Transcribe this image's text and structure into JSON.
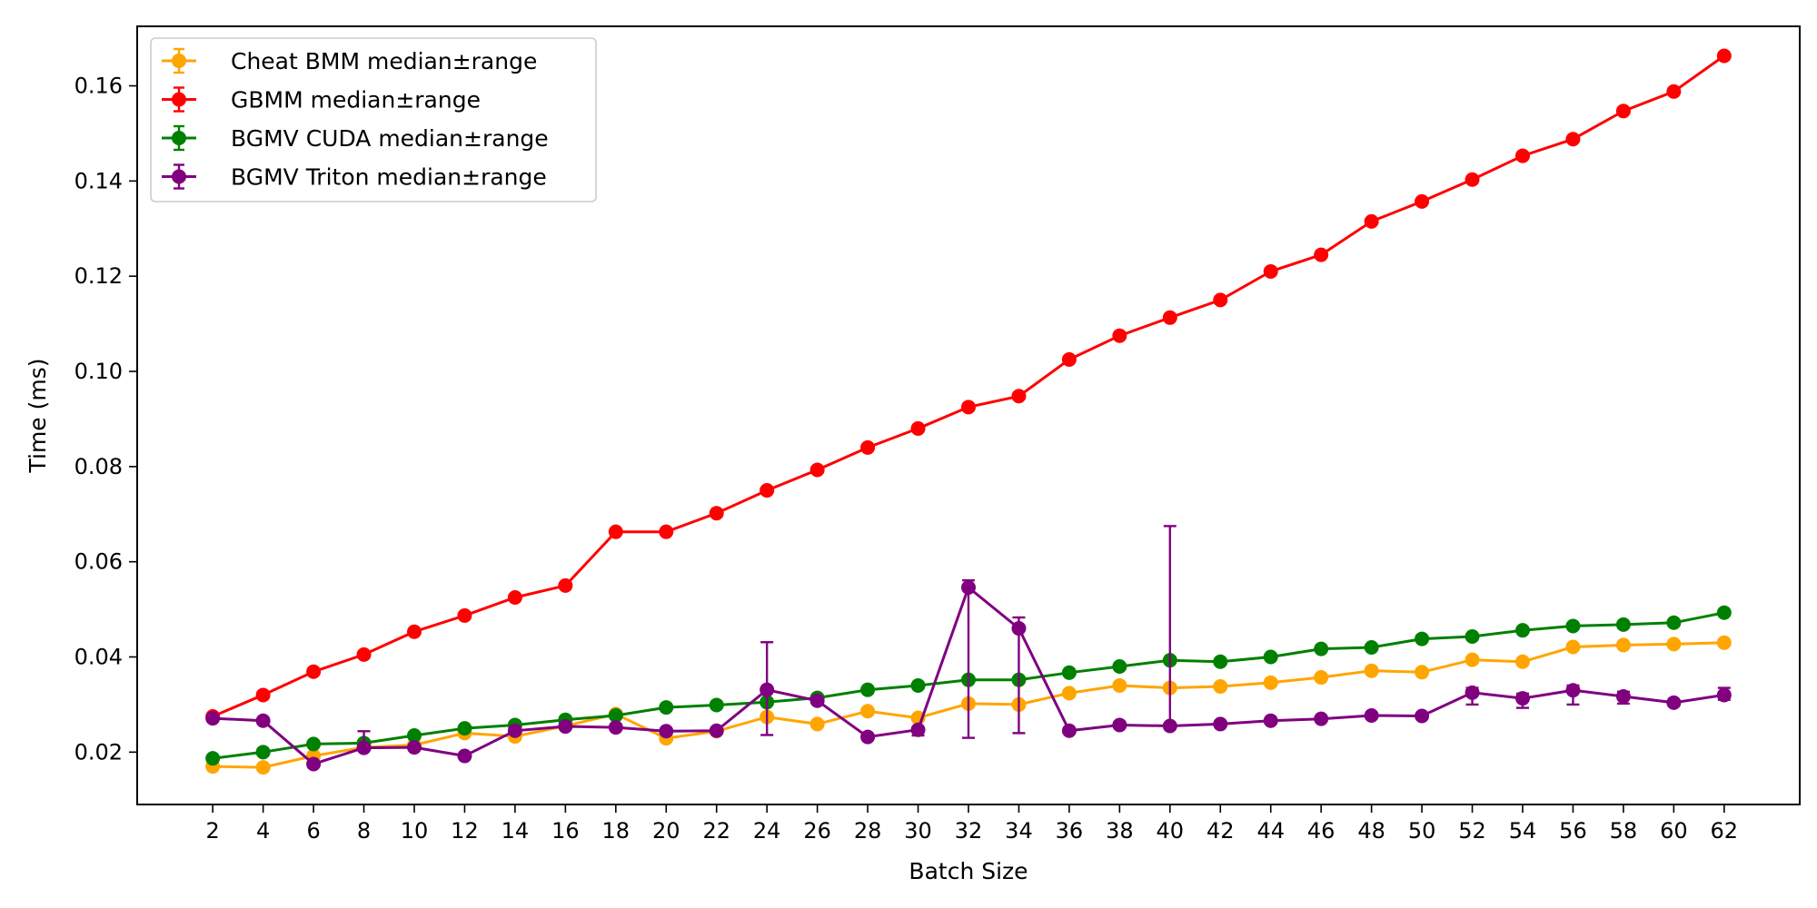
{
  "chart_data": {
    "type": "line",
    "title": "",
    "xlabel": "Batch Size",
    "ylabel": "Time (ms)",
    "xlim": [
      -1,
      65
    ],
    "ylim": [
      0.009,
      0.1725
    ],
    "x_ticks": [
      2,
      4,
      6,
      8,
      10,
      12,
      14,
      16,
      18,
      20,
      22,
      24,
      26,
      28,
      30,
      32,
      34,
      36,
      38,
      40,
      42,
      44,
      46,
      48,
      50,
      52,
      54,
      56,
      58,
      60,
      62
    ],
    "y_ticks": [
      0.02,
      0.04,
      0.06,
      0.08,
      0.1,
      0.12,
      0.14,
      0.16
    ],
    "y_tick_labels": [
      "0.02",
      "0.04",
      "0.06",
      "0.08",
      "0.10",
      "0.12",
      "0.14",
      "0.16"
    ],
    "grid": false,
    "legend_position": "top-left",
    "x": [
      2,
      4,
      6,
      8,
      10,
      12,
      14,
      16,
      18,
      20,
      22,
      24,
      26,
      28,
      30,
      32,
      34,
      36,
      38,
      40,
      42,
      44,
      46,
      48,
      50,
      52,
      54,
      56,
      58,
      60,
      62
    ],
    "series": [
      {
        "name": "Cheat BMM median±range",
        "color": "#ffa500",
        "values": [
          0.017,
          0.0168,
          0.0192,
          0.021,
          0.0215,
          0.024,
          0.0233,
          0.0255,
          0.028,
          0.0229,
          0.0244,
          0.0274,
          0.0259,
          0.0286,
          0.0272,
          0.0302,
          0.03,
          0.0324,
          0.034,
          0.0335,
          0.0338,
          0.0346,
          0.0357,
          0.0371,
          0.0368,
          0.0394,
          0.039,
          0.0421,
          0.0425,
          0.0427,
          0.043
        ],
        "err_low": [
          0,
          0,
          0,
          0,
          0,
          0,
          0,
          0,
          0,
          0,
          0,
          0,
          0,
          0,
          0,
          0,
          0,
          0,
          0,
          0,
          0,
          0,
          0,
          0,
          0,
          0,
          0,
          0,
          0,
          0,
          0
        ],
        "err_high": [
          0,
          0,
          0,
          0,
          0,
          0,
          0,
          0,
          0,
          0,
          0,
          0,
          0,
          0,
          0,
          0,
          0,
          0,
          0,
          0,
          0,
          0,
          0,
          0,
          0,
          0,
          0,
          0,
          0,
          0,
          0
        ]
      },
      {
        "name": "GBMM median±range",
        "color": "#ff0000",
        "values": [
          0.0275,
          0.032,
          0.0369,
          0.0405,
          0.0453,
          0.0487,
          0.0525,
          0.055,
          0.0663,
          0.0663,
          0.0702,
          0.075,
          0.0793,
          0.084,
          0.088,
          0.0925,
          0.0948,
          0.1025,
          0.1075,
          0.1113,
          0.115,
          0.121,
          0.1245,
          0.1315,
          0.1357,
          0.1403,
          0.1453,
          0.1488,
          0.1547,
          0.1588,
          0.1663
        ],
        "err_low": [
          0,
          0,
          0,
          0,
          0,
          0,
          0,
          0,
          0,
          0,
          0,
          0,
          0,
          0,
          0,
          0,
          0,
          0,
          0,
          0,
          0,
          0,
          0,
          0,
          0,
          0,
          0,
          0,
          0,
          0,
          0
        ],
        "err_high": [
          0,
          0,
          0,
          0,
          0,
          0,
          0,
          0,
          0,
          0,
          0,
          0,
          0,
          0,
          0,
          0,
          0,
          0,
          0,
          0,
          0,
          0,
          0,
          0,
          0,
          0,
          0,
          0,
          0,
          0,
          0
        ]
      },
      {
        "name": "BGMV CUDA median±range",
        "color": "#008000",
        "values": [
          0.0187,
          0.02,
          0.0217,
          0.0219,
          0.0235,
          0.025,
          0.0257,
          0.0268,
          0.0277,
          0.0294,
          0.0299,
          0.0305,
          0.0314,
          0.0331,
          0.034,
          0.0352,
          0.0352,
          0.0367,
          0.038,
          0.0393,
          0.039,
          0.04,
          0.0417,
          0.042,
          0.0438,
          0.0443,
          0.0456,
          0.0465,
          0.0468,
          0.0472,
          0.0493
        ],
        "err_low": [
          0,
          0,
          0,
          0,
          0,
          0,
          0,
          0,
          0,
          0,
          0,
          0,
          0,
          0,
          0,
          0,
          0,
          0,
          0,
          0,
          0,
          0,
          0,
          0,
          0,
          0,
          0,
          0,
          0,
          0,
          0
        ],
        "err_high": [
          0,
          0,
          0,
          0,
          0,
          0,
          0,
          0,
          0,
          0,
          0,
          0,
          0,
          0,
          0,
          0,
          0,
          0,
          0,
          0,
          0,
          0,
          0,
          0,
          0,
          0,
          0,
          0,
          0,
          0,
          0
        ]
      },
      {
        "name": "BGMV Triton median±range",
        "color": "#800080",
        "values": [
          0.0271,
          0.0266,
          0.0175,
          0.0209,
          0.021,
          0.0192,
          0.0245,
          0.0254,
          0.0252,
          0.0244,
          0.0245,
          0.0331,
          0.0308,
          0.0232,
          0.0247,
          0.0546,
          0.046,
          0.0245,
          0.0257,
          0.0255,
          0.0259,
          0.0266,
          0.027,
          0.0277,
          0.0276,
          0.0325,
          0.0313,
          0.033,
          0.0317,
          0.0304,
          0.032
        ],
        "err_low": [
          0,
          0,
          0,
          0.0005,
          0,
          0,
          0,
          0,
          0,
          0,
          0,
          0.0095,
          0,
          0,
          0.0012,
          0.0316,
          0.022,
          0,
          0,
          0,
          0,
          0,
          0,
          0,
          0,
          0.0025,
          0.002,
          0.003,
          0.0015,
          0,
          0.001
        ],
        "err_high": [
          0,
          0,
          0,
          0.0035,
          0,
          0,
          0,
          0,
          0,
          0,
          0,
          0.01,
          0,
          0,
          0,
          0.0015,
          0.0023,
          0,
          0,
          0.042,
          0,
          0,
          0,
          0,
          0,
          0.001,
          0.001,
          0.001,
          0.001,
          0,
          0.0015
        ]
      }
    ]
  }
}
